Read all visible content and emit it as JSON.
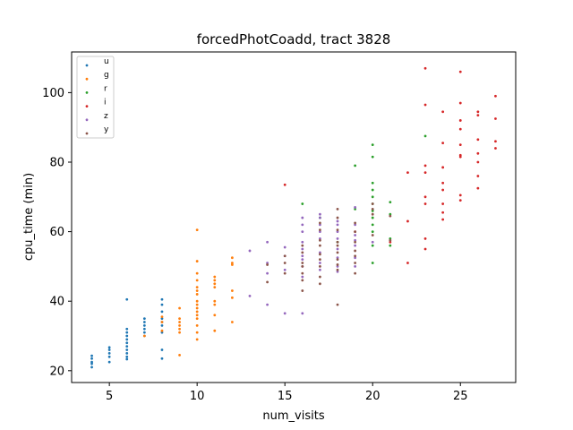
{
  "chart_data": {
    "type": "scatter",
    "title": "forcedPhotCoadd, tract 3828",
    "xlabel": "num_visits",
    "ylabel": "cpu_time (min)",
    "xlim": [
      2.85,
      28.15
    ],
    "ylim": [
      16.6,
      111.7
    ],
    "xticks": [
      5,
      10,
      15,
      20,
      25
    ],
    "yticks": [
      20,
      40,
      60,
      80,
      100
    ],
    "grid": false,
    "legend_position": "top-left",
    "series": [
      {
        "name": "u",
        "color": "#1f77b4",
        "points": [
          [
            4,
            21
          ],
          [
            4,
            22
          ],
          [
            4,
            22.5
          ],
          [
            4,
            23.5
          ],
          [
            4,
            24.3
          ],
          [
            5,
            22.5
          ],
          [
            5,
            24
          ],
          [
            5,
            25
          ],
          [
            5,
            26
          ],
          [
            5,
            26.7
          ],
          [
            6,
            23.3
          ],
          [
            6,
            24
          ],
          [
            6,
            25
          ],
          [
            6,
            26
          ],
          [
            6,
            27
          ],
          [
            6,
            28
          ],
          [
            6,
            29
          ],
          [
            6,
            30
          ],
          [
            6,
            31
          ],
          [
            6,
            32
          ],
          [
            6,
            40.5
          ],
          [
            7,
            30
          ],
          [
            7,
            31
          ],
          [
            7,
            32
          ],
          [
            7,
            33
          ],
          [
            7,
            34
          ],
          [
            7,
            35
          ],
          [
            8,
            23.5
          ],
          [
            8,
            26
          ],
          [
            8,
            31
          ],
          [
            8,
            33
          ],
          [
            8,
            34
          ],
          [
            8,
            35
          ],
          [
            8,
            37
          ],
          [
            8,
            39
          ],
          [
            8,
            40.5
          ]
        ]
      },
      {
        "name": "g",
        "color": "#ff7f0e",
        "points": [
          [
            7,
            30
          ],
          [
            8,
            31.5
          ],
          [
            8,
            34
          ],
          [
            8,
            35.5
          ],
          [
            9,
            24.5
          ],
          [
            9,
            31
          ],
          [
            9,
            32
          ],
          [
            9,
            33
          ],
          [
            9,
            34
          ],
          [
            9,
            35
          ],
          [
            9,
            38
          ],
          [
            10,
            29
          ],
          [
            10,
            31
          ],
          [
            10,
            33
          ],
          [
            10,
            35
          ],
          [
            10,
            36
          ],
          [
            10,
            37
          ],
          [
            10,
            38
          ],
          [
            10,
            39
          ],
          [
            10,
            40
          ],
          [
            10,
            42
          ],
          [
            10,
            43
          ],
          [
            10,
            44
          ],
          [
            10,
            46
          ],
          [
            10,
            48
          ],
          [
            10,
            51.5
          ],
          [
            10,
            60.5
          ],
          [
            11,
            31.5
          ],
          [
            11,
            36
          ],
          [
            11,
            39
          ],
          [
            11,
            40
          ],
          [
            11,
            44
          ],
          [
            11,
            45
          ],
          [
            11,
            46
          ],
          [
            11,
            47
          ],
          [
            12,
            34
          ],
          [
            12,
            41
          ],
          [
            12,
            43
          ],
          [
            12,
            50.5
          ],
          [
            12,
            51
          ],
          [
            12,
            52.5
          ]
        ]
      },
      {
        "name": "r",
        "color": "#2ca02c",
        "points": [
          [
            16,
            68
          ],
          [
            17,
            64
          ],
          [
            18,
            57
          ],
          [
            19,
            66.5
          ],
          [
            19,
            79
          ],
          [
            20,
            51
          ],
          [
            20,
            56
          ],
          [
            20,
            60
          ],
          [
            20,
            62
          ],
          [
            20,
            64
          ],
          [
            20,
            66
          ],
          [
            20,
            68
          ],
          [
            20,
            70
          ],
          [
            20,
            72
          ],
          [
            20,
            74
          ],
          [
            20,
            81.5
          ],
          [
            20,
            85
          ],
          [
            21,
            56
          ],
          [
            21,
            58
          ],
          [
            21,
            65
          ],
          [
            21,
            68.5
          ],
          [
            23,
            87.5
          ]
        ]
      },
      {
        "name": "i",
        "color": "#d62728",
        "points": [
          [
            15,
            73.5
          ],
          [
            19,
            60
          ],
          [
            21,
            57
          ],
          [
            22,
            51
          ],
          [
            22,
            63
          ],
          [
            22,
            77
          ],
          [
            23,
            55
          ],
          [
            23,
            58
          ],
          [
            23,
            68
          ],
          [
            23,
            70
          ],
          [
            23,
            77
          ],
          [
            23,
            79
          ],
          [
            23,
            96.5
          ],
          [
            23,
            107
          ],
          [
            24,
            63.5
          ],
          [
            24,
            65.5
          ],
          [
            24,
            68
          ],
          [
            24,
            72
          ],
          [
            24,
            74
          ],
          [
            24,
            78.5
          ],
          [
            24,
            85.5
          ],
          [
            24,
            94.5
          ],
          [
            25,
            69
          ],
          [
            25,
            70.5
          ],
          [
            25,
            81.5
          ],
          [
            25,
            82
          ],
          [
            25,
            85
          ],
          [
            25,
            89.5
          ],
          [
            25,
            92
          ],
          [
            25,
            97
          ],
          [
            25,
            106
          ],
          [
            26,
            72.5
          ],
          [
            26,
            76
          ],
          [
            26,
            80
          ],
          [
            26,
            82.5
          ],
          [
            26,
            86.5
          ],
          [
            26,
            93.5
          ],
          [
            26,
            94.5
          ],
          [
            27,
            84
          ],
          [
            27,
            86
          ],
          [
            27,
            92.5
          ],
          [
            27,
            99
          ]
        ]
      },
      {
        "name": "z",
        "color": "#9467bd",
        "points": [
          [
            13,
            41.5
          ],
          [
            13,
            54.5
          ],
          [
            14,
            39
          ],
          [
            14,
            48
          ],
          [
            14,
            51
          ],
          [
            14,
            57
          ],
          [
            15,
            36.5
          ],
          [
            15,
            49
          ],
          [
            15,
            53
          ],
          [
            15,
            55.5
          ],
          [
            16,
            36.5
          ],
          [
            16,
            47
          ],
          [
            16,
            50
          ],
          [
            16,
            52
          ],
          [
            16,
            53
          ],
          [
            16,
            55
          ],
          [
            16,
            57
          ],
          [
            16,
            60
          ],
          [
            16,
            62
          ],
          [
            16,
            64
          ],
          [
            17,
            49
          ],
          [
            17,
            51
          ],
          [
            17,
            54
          ],
          [
            17,
            58
          ],
          [
            17,
            60
          ],
          [
            17,
            62
          ],
          [
            17,
            64
          ],
          [
            17,
            65
          ],
          [
            18,
            48.5
          ],
          [
            18,
            50
          ],
          [
            18,
            52.5
          ],
          [
            18,
            55
          ],
          [
            18,
            58
          ],
          [
            18,
            60
          ],
          [
            18,
            62
          ],
          [
            18,
            63
          ],
          [
            19,
            50
          ],
          [
            19,
            52.5
          ],
          [
            19,
            56
          ],
          [
            19,
            57.5
          ],
          [
            19,
            59
          ],
          [
            19,
            62
          ],
          [
            19,
            67
          ],
          [
            20,
            57
          ]
        ]
      },
      {
        "name": "y",
        "color": "#8c564b",
        "points": [
          [
            14,
            45.5
          ],
          [
            14,
            50.5
          ],
          [
            15,
            48
          ],
          [
            15,
            51
          ],
          [
            15,
            53
          ],
          [
            16,
            43
          ],
          [
            16,
            46
          ],
          [
            16,
            48
          ],
          [
            16,
            50
          ],
          [
            16,
            51
          ],
          [
            16,
            54
          ],
          [
            16,
            56
          ],
          [
            17,
            45
          ],
          [
            17,
            47
          ],
          [
            17,
            50
          ],
          [
            17,
            52
          ],
          [
            17,
            53.5
          ],
          [
            17,
            56
          ],
          [
            17,
            57.5
          ],
          [
            17,
            60.5
          ],
          [
            17,
            62.5
          ],
          [
            18,
            39
          ],
          [
            18,
            49
          ],
          [
            18,
            50.5
          ],
          [
            18,
            52
          ],
          [
            18,
            54
          ],
          [
            18,
            56
          ],
          [
            18,
            57
          ],
          [
            18,
            60.5
          ],
          [
            18,
            64
          ],
          [
            18,
            66.5
          ],
          [
            19,
            48
          ],
          [
            19,
            51
          ],
          [
            19,
            53
          ],
          [
            19,
            54.5
          ],
          [
            19,
            57
          ],
          [
            19,
            60
          ],
          [
            19,
            62.5
          ],
          [
            20,
            59
          ],
          [
            20,
            65
          ],
          [
            20,
            66.5
          ],
          [
            20,
            68
          ],
          [
            21,
            57.5
          ],
          [
            21,
            64.5
          ]
        ]
      }
    ]
  }
}
